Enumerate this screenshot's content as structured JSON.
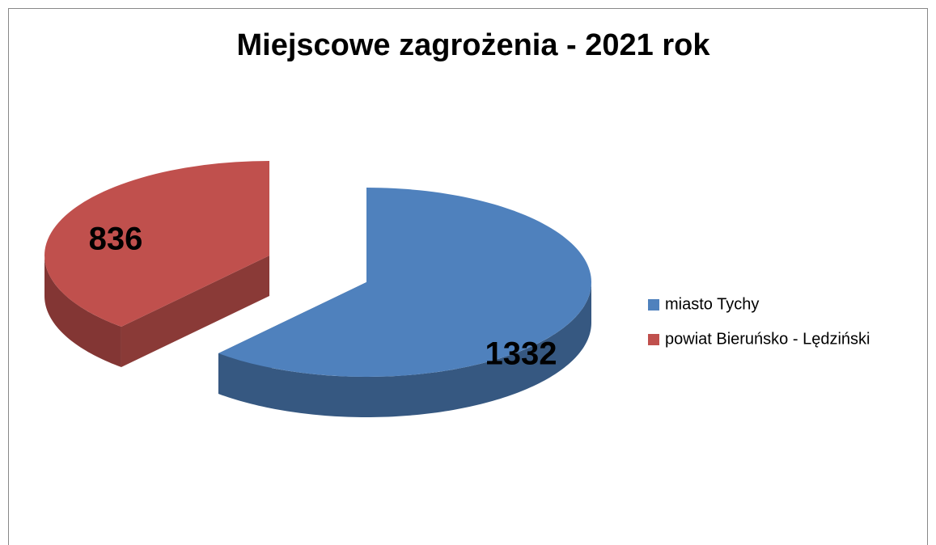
{
  "chart_data": {
    "type": "pie",
    "title": "Miejscowe zagrożenia - 2021 rok",
    "categories": [
      "miasto Tychy",
      "powiat Bieruńsko - Lędziński"
    ],
    "values": [
      1332,
      836
    ],
    "colors": [
      "#4f81bd",
      "#c0504d"
    ],
    "legend": "right"
  }
}
